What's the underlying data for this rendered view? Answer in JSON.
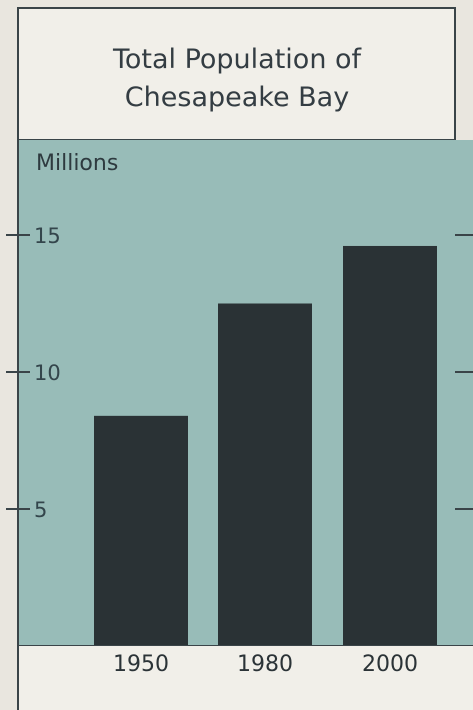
{
  "chart_data": {
    "type": "bar",
    "title_lines": [
      "Total Population of",
      "Chesapeake Bay"
    ],
    "ylabel": "Millions",
    "xlabel": "",
    "categories": [
      "1950",
      "1980",
      "2000"
    ],
    "values": [
      8.4,
      12.5,
      14.6
    ],
    "ylim": [
      0,
      16.5
    ],
    "yticks": [
      5,
      10,
      15
    ],
    "grid": false,
    "colors": {
      "plot_background": "#98bcb8",
      "bar": "#2a3235",
      "page_background": "#e9e6df",
      "border": "#3a4448"
    }
  }
}
